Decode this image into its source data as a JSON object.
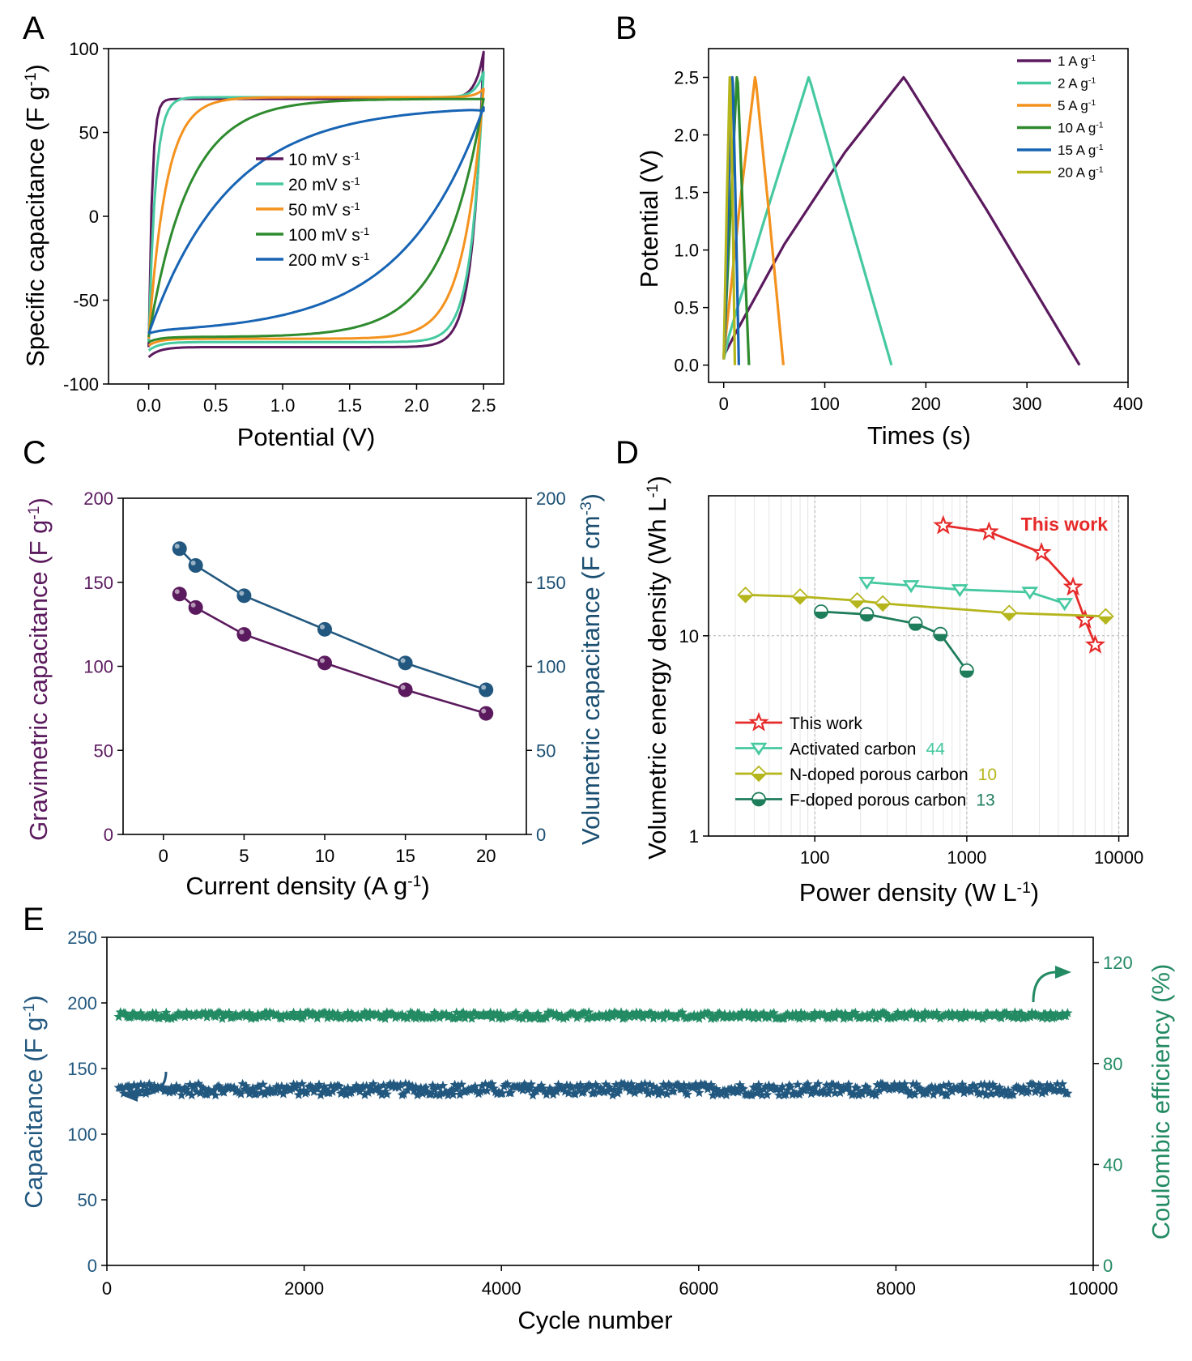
{
  "chart_data": [
    {
      "panel": "A",
      "type": "line",
      "xlabel": "Potential (V)",
      "ylabel": "Specific capacitance (F g",
      "ylabel_sup": "-1",
      "ylabel_end": ")",
      "xlim": [
        -0.3,
        2.65
      ],
      "ylim": [
        -100,
        100
      ],
      "xticks": [
        0.0,
        0.5,
        1.0,
        1.5,
        2.0,
        2.5
      ],
      "xtick_labels": [
        "0.0",
        "0.5",
        "1.0",
        "1.5",
        "2.0",
        "2.5"
      ],
      "yticks": [
        -100,
        -50,
        0,
        50,
        100
      ],
      "ytick_labels": [
        "-100",
        "-50",
        "0",
        "50",
        "100"
      ],
      "legend_position": "center",
      "series": [
        {
          "name": "10 mV s",
          "sup": "-1",
          "color": "#5b1a5e",
          "top_plateau": 70,
          "bottom_plateau": -78,
          "rise_time": 0.025,
          "decay_time": 0.08,
          "end_top": 98,
          "end_bottom": -55,
          "start_bottom": -84
        },
        {
          "name": "20 mV s",
          "sup": "-1",
          "color": "#46c9a0",
          "top_plateau": 71,
          "bottom_plateau": -75,
          "rise_time": 0.05,
          "decay_time": 0.09,
          "end_top": 86,
          "end_bottom": -52,
          "start_bottom": -80
        },
        {
          "name": "50 mV s",
          "sup": "-1",
          "color": "#f4921e",
          "top_plateau": 71,
          "bottom_plateau": -73,
          "rise_time": 0.13,
          "decay_time": 0.15,
          "end_top": 76,
          "end_bottom": -45,
          "start_bottom": -77
        },
        {
          "name": "100 mV s",
          "sup": "-1",
          "color": "#2e8b2e",
          "top_plateau": 70,
          "bottom_plateau": -72,
          "rise_time": 0.3,
          "decay_time": 0.3,
          "end_top": 70,
          "end_bottom": -35,
          "start_bottom": -75
        },
        {
          "name": "200 mV s",
          "sup": "-1",
          "color": "#1864b4",
          "top_plateau": 66,
          "bottom_plateau": -70,
          "rise_time": 0.6,
          "decay_time": 0.6,
          "end_top": 65,
          "end_bottom": -20,
          "start_bottom": -72
        }
      ]
    },
    {
      "panel": "B",
      "type": "line",
      "xlabel": "Times (s)",
      "ylabel": "Potential (V)",
      "xlim": [
        -15,
        400
      ],
      "ylim": [
        -0.15,
        2.75
      ],
      "xticks": [
        0,
        100,
        200,
        300,
        400
      ],
      "xtick_labels": [
        "0",
        "100",
        "200",
        "300",
        "400"
      ],
      "yticks": [
        0.0,
        0.5,
        1.0,
        1.5,
        2.0,
        2.5
      ],
      "ytick_labels": [
        "0.0",
        "0.5",
        "1.0",
        "1.5",
        "2.0",
        "2.5"
      ],
      "legend_position": "top-right",
      "series": [
        {
          "name": "1 A g",
          "sup": "-1",
          "color": "#5b1a5e",
          "x": [
            0,
            10,
            60,
            120,
            178,
            182,
            260,
            352
          ],
          "y": [
            0.08,
            0.25,
            1.05,
            1.85,
            2.5,
            2.45,
            1.35,
            0.0
          ]
        },
        {
          "name": "2 A g",
          "sup": "-1",
          "color": "#46c9a0",
          "x": [
            0,
            5,
            45,
            84,
            86,
            120,
            166
          ],
          "y": [
            0.05,
            0.25,
            1.4,
            2.5,
            2.45,
            1.4,
            0.0
          ]
        },
        {
          "name": "5 A g",
          "sup": "-1",
          "color": "#f4921e",
          "x": [
            0,
            2,
            16,
            31,
            32,
            45,
            59
          ],
          "y": [
            0.05,
            0.25,
            1.4,
            2.5,
            2.45,
            1.3,
            0.0
          ]
        },
        {
          "name": "10 A g",
          "sup": "-1",
          "color": "#2e8b2e",
          "x": [
            0,
            1,
            7,
            13,
            14,
            19,
            25
          ],
          "y": [
            0.05,
            0.25,
            1.4,
            2.5,
            2.45,
            1.3,
            0.0
          ]
        },
        {
          "name": "15 A g",
          "sup": "-1",
          "color": "#1864b4",
          "x": [
            0,
            1,
            4.5,
            8.5,
            9,
            12,
            15
          ],
          "y": [
            0.05,
            0.25,
            1.4,
            2.5,
            2.45,
            1.3,
            0.0
          ]
        },
        {
          "name": "20 A g",
          "sup": "-1",
          "color": "#b5b51c",
          "x": [
            0,
            0.5,
            3,
            6,
            6.5,
            9,
            11
          ],
          "y": [
            0.05,
            0.25,
            1.4,
            2.5,
            2.45,
            1.3,
            0.0
          ]
        }
      ]
    },
    {
      "panel": "C",
      "type": "scatter",
      "xlabel": "Current density (A g",
      "xlabel_sup": "-1",
      "xlabel_end": ")",
      "ylabel_left": "Gravimetric capacitance (F g",
      "ylabel_left_sup": "-1",
      "ylabel_left_end": ")",
      "ylabel_right": "Volumetric capacitance (F cm",
      "ylabel_right_sup": "-3",
      "ylabel_right_end": ")",
      "xlim": [
        -2.5,
        22.5
      ],
      "ylim": [
        0,
        200
      ],
      "xticks": [
        0,
        5,
        10,
        15,
        20
      ],
      "xtick_labels": [
        "0",
        "5",
        "10",
        "15",
        "20"
      ],
      "yticks": [
        0,
        50,
        100,
        150,
        200
      ],
      "ytick_labels": [
        "0",
        "50",
        "100",
        "150",
        "200"
      ],
      "left_color": "#5b1a5e",
      "right_color": "#1b4f72",
      "series": [
        {
          "name": "Gravimetric",
          "color": "#5b1a5e",
          "x": [
            1,
            2,
            5,
            10,
            15,
            20
          ],
          "y": [
            143,
            135,
            119,
            102,
            86,
            72
          ]
        },
        {
          "name": "Volumetric",
          "color": "#22587f",
          "x": [
            1,
            2,
            5,
            10,
            15,
            20
          ],
          "y": [
            170,
            160,
            142,
            122,
            102,
            86
          ]
        }
      ]
    },
    {
      "panel": "D",
      "type": "line",
      "xlabel": "Power density (W L",
      "xlabel_sup": "-1",
      "xlabel_end": ")",
      "ylabel": "Volumetric energy density (Wh L",
      "ylabel_sup": "-1",
      "ylabel_end": ")",
      "xscale": "log",
      "yscale": "log",
      "xlim": [
        20,
        11500
      ],
      "ylim": [
        1,
        50
      ],
      "xticks": [
        100,
        1000,
        10000
      ],
      "xtick_labels": [
        "100",
        "1000",
        "10000"
      ],
      "yticks": [
        1,
        10
      ],
      "ytick_labels": [
        "1",
        "10"
      ],
      "annotation": "This work",
      "annotation_color": "#e62a2a",
      "legend_position": "bottom-left",
      "series": [
        {
          "name": "This work",
          "ref": "",
          "color": "#e62a2a",
          "marker": "star",
          "x": [
            700,
            1400,
            3100,
            5000,
            6000,
            7000
          ],
          "y": [
            35.5,
            33,
            26,
            17.5,
            12,
            9
          ]
        },
        {
          "name": "Activated carbon",
          "ref": "44",
          "color": "#46c9a0",
          "marker": "triangle",
          "x": [
            220,
            430,
            900,
            2600,
            4400
          ],
          "y": [
            18.5,
            17.8,
            17,
            16.5,
            14.5
          ]
        },
        {
          "name": "N-doped porous carbon",
          "ref": "10",
          "color": "#b5b51c",
          "marker": "diamond",
          "x": [
            35,
            80,
            190,
            280,
            1900,
            8200
          ],
          "y": [
            16,
            15.7,
            15,
            14.5,
            13,
            12.5
          ]
        },
        {
          "name": "F-doped porous carbon",
          "ref": "13",
          "color": "#1e7d5a",
          "marker": "halfcircle",
          "x": [
            110,
            220,
            460,
            670,
            1000
          ],
          "y": [
            13.2,
            12.8,
            11.5,
            10.2,
            6.7
          ]
        }
      ]
    },
    {
      "panel": "E",
      "type": "scatter",
      "xlabel": "Cycle number",
      "ylabel_left": "Capacitance (F g",
      "ylabel_left_sup": "-1",
      "ylabel_left_end": ")",
      "ylabel_right": "Coulombic efficiency (%)",
      "xlim": [
        0,
        10000
      ],
      "ylim_left": [
        0,
        250
      ],
      "ylim_right": [
        0,
        130
      ],
      "xticks": [
        0,
        2000,
        4000,
        6000,
        8000,
        10000
      ],
      "xtick_labels": [
        "0",
        "2000",
        "4000",
        "6000",
        "8000",
        "10000"
      ],
      "yticks_left": [
        0,
        50,
        100,
        150,
        200,
        250
      ],
      "ytick_left_labels": [
        "0",
        "50",
        "100",
        "150",
        "200",
        "250"
      ],
      "yticks_right": [
        0,
        40,
        80,
        120
      ],
      "ytick_right_labels": [
        "0",
        "40",
        "80",
        "120"
      ],
      "capacitance_color": "#22587f",
      "efficiency_color": "#238b64",
      "capacitance_mean": 134,
      "capacitance_spread": 4.5,
      "efficiency_mean": 99,
      "efficiency_spread": 1.3
    }
  ]
}
